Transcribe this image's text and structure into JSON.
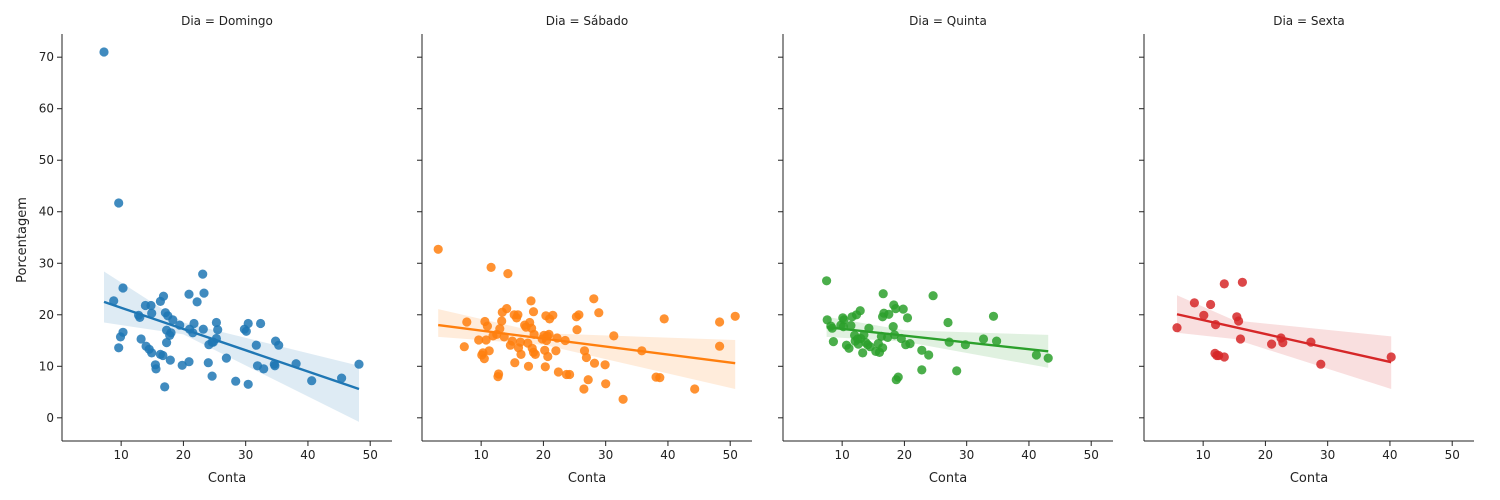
{
  "ylabel": "Porcentagem",
  "xlabel": "Conta",
  "colors": {
    "Domingo": "#1f77b4",
    "Sábado": "#ff7f0e",
    "Quinta": "#2ca02c",
    "Sexta": "#d62728"
  },
  "chart_data": {
    "type": "scatter",
    "facet_titles": [
      "Dia = Domingo",
      "Dia = Sábado",
      "Dia = Quinta",
      "Dia = Sexta"
    ],
    "xlabel": "Conta",
    "ylabel": "Porcentagem",
    "xlim": [
      0.5,
      53.5
    ],
    "ylim": [
      -4.5,
      74.5
    ],
    "xticks": [
      10,
      20,
      30,
      40,
      50
    ],
    "yticks": [
      0,
      10,
      20,
      30,
      40,
      50,
      60,
      70
    ],
    "grid": false,
    "sharey": true,
    "facets": [
      {
        "name": "Domingo",
        "points": [
          [
            7.25,
            71.0
          ],
          [
            9.6,
            41.7
          ],
          [
            8.8,
            22.7
          ],
          [
            10.3,
            25.2
          ],
          [
            10.3,
            16.6
          ],
          [
            9.9,
            15.7
          ],
          [
            9.6,
            13.6
          ],
          [
            12.8,
            19.9
          ],
          [
            13.0,
            19.5
          ],
          [
            13.9,
            21.8
          ],
          [
            14.8,
            21.8
          ],
          [
            14.9,
            20.3
          ],
          [
            13.2,
            15.3
          ],
          [
            14.0,
            13.9
          ],
          [
            14.5,
            13.3
          ],
          [
            14.9,
            12.6
          ],
          [
            15.5,
            10.3
          ],
          [
            15.6,
            9.5
          ],
          [
            16.3,
            12.3
          ],
          [
            16.7,
            12.1
          ],
          [
            16.3,
            22.6
          ],
          [
            16.8,
            23.6
          ],
          [
            17.1,
            20.4
          ],
          [
            17.5,
            19.8
          ],
          [
            18.3,
            19.0
          ],
          [
            17.3,
            17.0
          ],
          [
            18.0,
            16.5
          ],
          [
            17.8,
            16.0
          ],
          [
            17.3,
            14.6
          ],
          [
            17.9,
            11.2
          ],
          [
            17.0,
            6.0
          ],
          [
            19.4,
            18.0
          ],
          [
            19.8,
            10.2
          ],
          [
            20.9,
            24.0
          ],
          [
            21.5,
            16.5
          ],
          [
            21.0,
            17.2
          ],
          [
            21.7,
            18.3
          ],
          [
            20.9,
            10.9
          ],
          [
            22.2,
            22.5
          ],
          [
            23.1,
            27.9
          ],
          [
            23.3,
            24.2
          ],
          [
            23.2,
            17.2
          ],
          [
            24.1,
            14.2
          ],
          [
            24.0,
            10.7
          ],
          [
            24.6,
            8.1
          ],
          [
            24.8,
            14.7
          ],
          [
            25.3,
            15.4
          ],
          [
            25.3,
            18.5
          ],
          [
            25.5,
            17.1
          ],
          [
            24.6,
            14.7
          ],
          [
            26.9,
            11.6
          ],
          [
            28.4,
            7.1
          ],
          [
            29.8,
            17.2
          ],
          [
            30.1,
            16.8
          ],
          [
            30.4,
            18.3
          ],
          [
            30.4,
            6.5
          ],
          [
            31.7,
            14.1
          ],
          [
            31.9,
            10.1
          ],
          [
            32.4,
            18.3
          ],
          [
            32.9,
            9.5
          ],
          [
            34.6,
            10.4
          ],
          [
            34.8,
            14.9
          ],
          [
            35.3,
            14.1
          ],
          [
            34.7,
            10.1
          ],
          [
            38.1,
            10.5
          ],
          [
            40.6,
            7.2
          ],
          [
            45.4,
            7.7
          ],
          [
            48.2,
            10.4
          ]
        ],
        "regression": {
          "x": [
            7.25,
            48.2
          ],
          "y": [
            22.5,
            5.6
          ]
        },
        "ci_band": {
          "x": [
            7.25,
            20,
            48.2
          ],
          "upper": [
            28.4,
            18.5,
            10.1
          ],
          "lower": [
            18.5,
            16.2,
            -0.8
          ]
        }
      },
      {
        "name": "Sábado",
        "points": [
          [
            3.1,
            32.7
          ],
          [
            7.3,
            13.8
          ],
          [
            7.7,
            18.6
          ],
          [
            9.6,
            15.1
          ],
          [
            10.1,
            12.2
          ],
          [
            10.3,
            12.6
          ],
          [
            10.5,
            11.5
          ],
          [
            10.6,
            18.7
          ],
          [
            10.8,
            15.1
          ],
          [
            11.0,
            17.8
          ],
          [
            11.3,
            13.0
          ],
          [
            11.6,
            29.2
          ],
          [
            11.9,
            15.9
          ],
          [
            12.5,
            16.2
          ],
          [
            12.7,
            8.0
          ],
          [
            12.8,
            8.5
          ],
          [
            13.0,
            17.3
          ],
          [
            13.3,
            18.8
          ],
          [
            13.4,
            20.5
          ],
          [
            13.7,
            15.7
          ],
          [
            14.1,
            21.2
          ],
          [
            14.3,
            28.0
          ],
          [
            14.7,
            14.1
          ],
          [
            15.0,
            14.9
          ],
          [
            15.3,
            20.0
          ],
          [
            15.4,
            10.7
          ],
          [
            15.7,
            19.4
          ],
          [
            15.9,
            20.0
          ],
          [
            16.0,
            13.6
          ],
          [
            16.3,
            14.7
          ],
          [
            16.4,
            12.3
          ],
          [
            17.0,
            18.0
          ],
          [
            17.2,
            17.6
          ],
          [
            17.5,
            14.5
          ],
          [
            17.6,
            10.0
          ],
          [
            17.8,
            18.5
          ],
          [
            18.0,
            22.7
          ],
          [
            18.1,
            17.4
          ],
          [
            18.2,
            13.5
          ],
          [
            18.4,
            12.7
          ],
          [
            18.4,
            20.6
          ],
          [
            18.5,
            16.2
          ],
          [
            18.7,
            12.3
          ],
          [
            19.8,
            15.3
          ],
          [
            20.1,
            16.0
          ],
          [
            20.2,
            13.1
          ],
          [
            20.3,
            9.9
          ],
          [
            20.4,
            19.8
          ],
          [
            20.5,
            15.0
          ],
          [
            20.6,
            15.9
          ],
          [
            20.7,
            11.9
          ],
          [
            20.9,
            16.2
          ],
          [
            21.0,
            19.2
          ],
          [
            21.5,
            19.9
          ],
          [
            22.0,
            13.0
          ],
          [
            22.2,
            15.5
          ],
          [
            22.4,
            8.9
          ],
          [
            23.5,
            15.0
          ],
          [
            23.7,
            8.4
          ],
          [
            24.2,
            8.4
          ],
          [
            25.3,
            19.6
          ],
          [
            25.4,
            17.1
          ],
          [
            25.7,
            20.0
          ],
          [
            26.5,
            5.6
          ],
          [
            26.6,
            13.0
          ],
          [
            26.9,
            11.7
          ],
          [
            27.2,
            7.4
          ],
          [
            28.1,
            23.1
          ],
          [
            28.2,
            10.6
          ],
          [
            28.9,
            20.4
          ],
          [
            29.9,
            10.3
          ],
          [
            30.0,
            6.6
          ],
          [
            31.3,
            15.9
          ],
          [
            32.8,
            3.6
          ],
          [
            35.8,
            13.0
          ],
          [
            38.1,
            7.9
          ],
          [
            38.7,
            7.8
          ],
          [
            39.4,
            19.2
          ],
          [
            44.3,
            5.6
          ],
          [
            48.3,
            18.6
          ],
          [
            48.3,
            13.9
          ],
          [
            50.8,
            19.7
          ]
        ],
        "regression": {
          "x": [
            3.1,
            50.8
          ],
          "y": [
            18.0,
            10.6
          ]
        },
        "ci_band": {
          "x": [
            3.1,
            20,
            50.8
          ],
          "upper": [
            21.1,
            16.4,
            15.1
          ],
          "lower": [
            15.7,
            14.2,
            5.6
          ]
        }
      },
      {
        "name": "Quinta",
        "points": [
          [
            7.5,
            26.6
          ],
          [
            7.6,
            19.0
          ],
          [
            8.2,
            17.8
          ],
          [
            8.4,
            17.4
          ],
          [
            8.6,
            14.8
          ],
          [
            9.8,
            18.0
          ],
          [
            10.1,
            19.4
          ],
          [
            10.2,
            17.7
          ],
          [
            10.3,
            19.0
          ],
          [
            10.7,
            14.1
          ],
          [
            11.1,
            13.5
          ],
          [
            11.4,
            17.9
          ],
          [
            11.6,
            19.6
          ],
          [
            12.0,
            16.0
          ],
          [
            12.1,
            14.9
          ],
          [
            12.3,
            20.0
          ],
          [
            12.5,
            15.3
          ],
          [
            12.6,
            14.3
          ],
          [
            12.9,
            20.8
          ],
          [
            13.0,
            15.4
          ],
          [
            13.3,
            12.6
          ],
          [
            13.5,
            16.1
          ],
          [
            13.8,
            14.6
          ],
          [
            14.1,
            14.2
          ],
          [
            14.3,
            17.4
          ],
          [
            14.5,
            13.8
          ],
          [
            15.4,
            12.9
          ],
          [
            15.8,
            14.4
          ],
          [
            16.0,
            12.7
          ],
          [
            16.3,
            15.8
          ],
          [
            16.5,
            13.6
          ],
          [
            16.5,
            19.6
          ],
          [
            16.6,
            24.1
          ],
          [
            16.7,
            20.3
          ],
          [
            17.3,
            15.6
          ],
          [
            17.5,
            20.1
          ],
          [
            18.2,
            17.7
          ],
          [
            18.3,
            21.9
          ],
          [
            18.4,
            16.1
          ],
          [
            18.6,
            21.2
          ],
          [
            18.7,
            7.4
          ],
          [
            19.0,
            7.9
          ],
          [
            19.5,
            15.4
          ],
          [
            19.8,
            21.1
          ],
          [
            20.2,
            14.2
          ],
          [
            20.5,
            19.4
          ],
          [
            20.9,
            14.4
          ],
          [
            22.8,
            13.1
          ],
          [
            22.8,
            9.3
          ],
          [
            23.9,
            12.2
          ],
          [
            24.6,
            23.7
          ],
          [
            27.0,
            18.5
          ],
          [
            27.2,
            14.7
          ],
          [
            28.4,
            9.1
          ],
          [
            29.8,
            14.2
          ],
          [
            32.7,
            15.3
          ],
          [
            34.3,
            19.7
          ],
          [
            34.8,
            14.9
          ],
          [
            41.2,
            12.2
          ],
          [
            43.1,
            11.6
          ]
        ],
        "regression": {
          "x": [
            7.5,
            43.1
          ],
          "y": [
            17.6,
            12.9
          ]
        },
        "ci_band": {
          "x": [
            7.5,
            20,
            43.1
          ],
          "upper": [
            19.6,
            17.0,
            16.1
          ],
          "lower": [
            15.7,
            14.8,
            9.7
          ]
        }
      },
      {
        "name": "Sexta",
        "points": [
          [
            5.8,
            17.5
          ],
          [
            8.6,
            22.3
          ],
          [
            10.1,
            19.9
          ],
          [
            11.2,
            22.0
          ],
          [
            11.9,
            12.5
          ],
          [
            12.0,
            18.1
          ],
          [
            12.2,
            12.1
          ],
          [
            12.5,
            12.1
          ],
          [
            13.4,
            26.0
          ],
          [
            13.4,
            11.8
          ],
          [
            15.4,
            19.6
          ],
          [
            15.7,
            18.8
          ],
          [
            16.0,
            15.3
          ],
          [
            16.3,
            26.3
          ],
          [
            21.0,
            14.3
          ],
          [
            22.5,
            15.5
          ],
          [
            22.8,
            14.6
          ],
          [
            27.3,
            14.7
          ],
          [
            28.9,
            10.4
          ],
          [
            40.2,
            11.8
          ]
        ],
        "regression": {
          "x": [
            5.8,
            40.2
          ],
          "y": [
            20.1,
            10.8
          ]
        },
        "ci_band": {
          "x": [
            5.8,
            15,
            40.2
          ],
          "upper": [
            23.8,
            18.9,
            15.8
          ],
          "lower": [
            16.5,
            15.3,
            5.6
          ]
        }
      }
    ]
  }
}
